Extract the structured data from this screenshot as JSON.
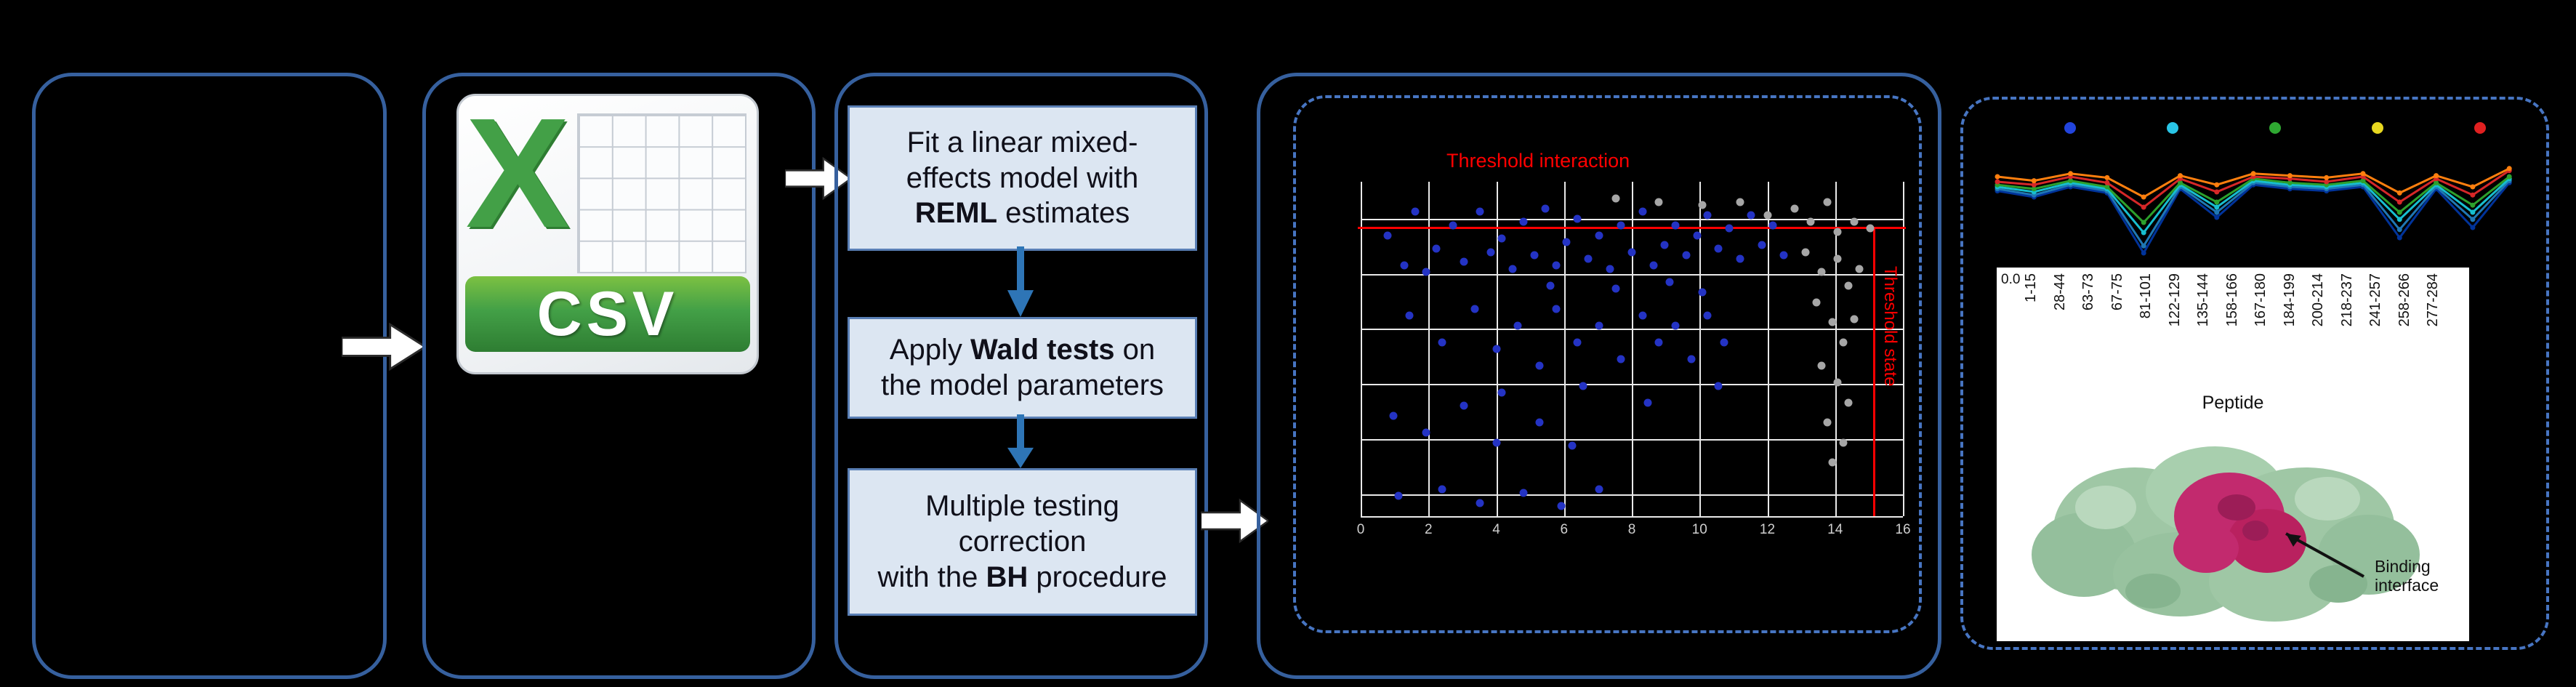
{
  "csv": {
    "letter": "X",
    "label": "CSV"
  },
  "pipeline": {
    "boxes": [
      {
        "lines": [
          [
            {
              "t": "Fit a linear mixed-"
            }
          ],
          [
            {
              "t": "effects model with"
            }
          ],
          [
            {
              "t": "REML",
              "b": 1
            },
            {
              "t": " estimates"
            }
          ]
        ]
      },
      {
        "lines": [
          [
            {
              "t": "Apply "
            },
            {
              "t": "Wald tests",
              "b": 1
            },
            {
              "t": " on"
            }
          ],
          [
            {
              "t": "the model parameters"
            }
          ]
        ]
      },
      {
        "lines": [
          [
            {
              "t": "Multiple testing"
            }
          ],
          [
            {
              "t": "correction"
            }
          ],
          [
            {
              "t": "with the "
            },
            {
              "t": "BH",
              "b": 1
            },
            {
              "t": " procedure"
            }
          ]
        ]
      }
    ]
  },
  "scatter": {
    "type": "scatter",
    "title": "Threshold interaction",
    "right_label": "Threshold state",
    "threshold_color": "#ff0000",
    "threshold_h_percent": 13.5,
    "threshold_v_percent": 94.5,
    "x_ticks": [
      "0",
      "2",
      "4",
      "6",
      "8",
      "10",
      "12",
      "14",
      "16"
    ],
    "grid": {
      "v_percents": [
        0,
        12.5,
        25,
        37.5,
        50,
        62.5,
        75,
        87.5,
        100
      ],
      "h_percents": [
        11,
        27.5,
        44,
        60.5,
        77,
        93.5,
        100
      ]
    },
    "point_colors": {
      "blue": "#2433c4",
      "gray": "#a6a6a6"
    },
    "points_blue": [
      [
        5,
        16
      ],
      [
        8,
        25
      ],
      [
        10,
        9
      ],
      [
        12,
        27
      ],
      [
        14,
        20
      ],
      [
        17,
        13
      ],
      [
        19,
        24
      ],
      [
        22,
        9
      ],
      [
        24,
        21
      ],
      [
        26,
        17
      ],
      [
        28,
        26
      ],
      [
        30,
        12
      ],
      [
        32,
        22
      ],
      [
        34,
        8
      ],
      [
        36,
        25
      ],
      [
        38,
        18
      ],
      [
        40,
        11
      ],
      [
        42,
        23
      ],
      [
        44,
        16
      ],
      [
        46,
        26
      ],
      [
        48,
        13
      ],
      [
        50,
        21
      ],
      [
        52,
        9
      ],
      [
        54,
        25
      ],
      [
        56,
        19
      ],
      [
        58,
        13
      ],
      [
        60,
        22
      ],
      [
        62,
        16
      ],
      [
        64,
        10
      ],
      [
        66,
        20
      ],
      [
        68,
        14
      ],
      [
        70,
        23
      ],
      [
        72,
        10
      ],
      [
        74,
        19
      ],
      [
        76,
        13
      ],
      [
        78,
        22
      ],
      [
        9,
        40
      ],
      [
        15,
        48
      ],
      [
        21,
        38
      ],
      [
        25,
        50
      ],
      [
        29,
        43
      ],
      [
        33,
        55
      ],
      [
        36,
        38
      ],
      [
        40,
        48
      ],
      [
        44,
        43
      ],
      [
        48,
        53
      ],
      [
        52,
        40
      ],
      [
        55,
        48
      ],
      [
        58,
        43
      ],
      [
        61,
        53
      ],
      [
        64,
        40
      ],
      [
        67,
        48
      ],
      [
        35,
        31
      ],
      [
        47,
        32
      ],
      [
        57,
        30
      ],
      [
        63,
        33
      ],
      [
        26,
        63
      ],
      [
        41,
        61
      ],
      [
        53,
        66
      ],
      [
        66,
        61
      ],
      [
        6,
        70
      ],
      [
        12,
        75
      ],
      [
        19,
        67
      ],
      [
        25,
        78
      ],
      [
        33,
        72
      ],
      [
        39,
        79
      ],
      [
        7,
        94
      ],
      [
        15,
        92
      ],
      [
        22,
        96
      ],
      [
        30,
        93
      ],
      [
        37,
        97
      ],
      [
        44,
        92
      ]
    ],
    "points_gray": [
      [
        80,
        8
      ],
      [
        83,
        12
      ],
      [
        86,
        6
      ],
      [
        88,
        15
      ],
      [
        82,
        21
      ],
      [
        85,
        27
      ],
      [
        88,
        23
      ],
      [
        90,
        31
      ],
      [
        84,
        36
      ],
      [
        87,
        42
      ],
      [
        89,
        48
      ],
      [
        85,
        55
      ],
      [
        88,
        60
      ],
      [
        90,
        66
      ],
      [
        86,
        72
      ],
      [
        91,
        12
      ],
      [
        92,
        26
      ],
      [
        91,
        41
      ],
      [
        63,
        7
      ],
      [
        55,
        6
      ],
      [
        47,
        5
      ],
      [
        70,
        6
      ],
      [
        75,
        10
      ],
      [
        89,
        78
      ],
      [
        87,
        84
      ],
      [
        94,
        14
      ]
    ]
  },
  "uptake": {
    "type": "line",
    "legend_colors": [
      "#2244dd",
      "#29c5e6",
      "#2fa832",
      "#e8d820",
      "#e02020"
    ],
    "series": [
      {
        "name": "state-darkblue",
        "color": "#00339a",
        "values": [
          0.66,
          0.6,
          0.7,
          0.64,
          0.05,
          0.68,
          0.4,
          0.72,
          0.68,
          0.66,
          0.7,
          0.2,
          0.68,
          0.3,
          0.74
        ]
      },
      {
        "name": "state-blue",
        "color": "#1f77b4",
        "values": [
          0.68,
          0.62,
          0.72,
          0.66,
          0.12,
          0.7,
          0.45,
          0.74,
          0.7,
          0.68,
          0.72,
          0.28,
          0.7,
          0.38,
          0.76
        ]
      },
      {
        "name": "state-cyan",
        "color": "#17becf",
        "values": [
          0.7,
          0.65,
          0.74,
          0.68,
          0.25,
          0.72,
          0.5,
          0.76,
          0.72,
          0.7,
          0.74,
          0.38,
          0.72,
          0.45,
          0.78
        ]
      },
      {
        "name": "state-green",
        "color": "#2ca02c",
        "values": [
          0.72,
          0.68,
          0.76,
          0.7,
          0.35,
          0.74,
          0.55,
          0.78,
          0.74,
          0.72,
          0.76,
          0.45,
          0.74,
          0.52,
          0.8
        ]
      },
      {
        "name": "state-red",
        "color": "#d62728",
        "values": [
          0.75,
          0.72,
          0.8,
          0.74,
          0.5,
          0.78,
          0.65,
          0.8,
          0.78,
          0.75,
          0.8,
          0.55,
          0.78,
          0.62,
          0.86
        ]
      },
      {
        "name": "state-orange",
        "color": "#ff7f0e",
        "values": [
          0.8,
          0.76,
          0.83,
          0.79,
          0.6,
          0.81,
          0.72,
          0.83,
          0.81,
          0.79,
          0.83,
          0.64,
          0.81,
          0.7,
          0.88
        ]
      }
    ]
  },
  "peptide_axis": {
    "y_tick": "0.0",
    "ticks": [
      "1-15",
      "28-44",
      "63-73",
      "67-75",
      "81-101",
      "122-129",
      "135-144",
      "158-166",
      "167-180",
      "184-199",
      "200-214",
      "218-237",
      "241-257",
      "258-266",
      "277-284"
    ],
    "label": "Peptide"
  },
  "structure": {
    "annotation_line1": "Binding",
    "annotation_line2": "interface"
  }
}
